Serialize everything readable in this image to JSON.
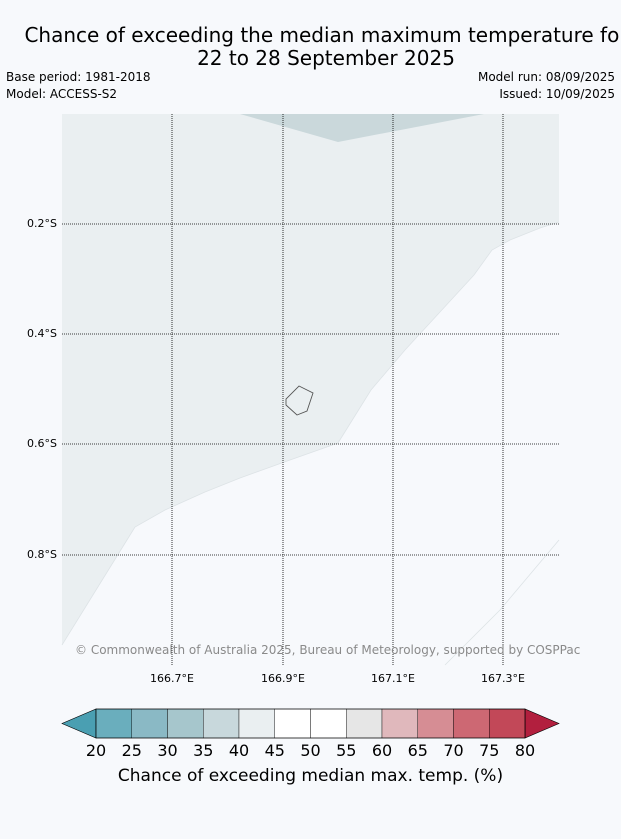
{
  "title_line1": "Chance of exceeding the median maximum temperature for",
  "title_line2": "22 to 28 September 2025",
  "base_period": "Base period: 1981-2018",
  "model": "Model: ACCESS-S2",
  "model_run": "Model run: 08/09/2025",
  "issued": "Issued: 10/09/2025",
  "lat_labels": [
    "0.2°S",
    "0.4°S",
    "0.6°S",
    "0.8°S"
  ],
  "lon_labels": [
    "166.7°E",
    "166.9°E",
    "167.1°E",
    "167.3°E"
  ],
  "copyright": "© Commonwealth of Australia 2025, Bureau of Meteorology, supported by COSPPac",
  "colorbar": {
    "ticks": [
      "20",
      "25",
      "30",
      "35",
      "40",
      "45",
      "50",
      "55",
      "60",
      "65",
      "70",
      "75",
      "80"
    ],
    "colors": [
      "#4a9fb2",
      "#6aaebd",
      "#8ab9c5",
      "#a6c6cc",
      "#c8d8dc",
      "#eaeff1",
      "#ffffff",
      "#ffffff",
      "#e6e6e6",
      "#e0b8bc",
      "#d68d94",
      "#cd6873",
      "#c24858",
      "#b21f3e"
    ],
    "label": "Chance of exceeding median max. temp. (%)"
  },
  "map_colors": {
    "region_40_45": "#eaeff1",
    "region_35_40": "#cad8db",
    "region_50_55": "#f7f9fc",
    "coastline": "#555555"
  }
}
